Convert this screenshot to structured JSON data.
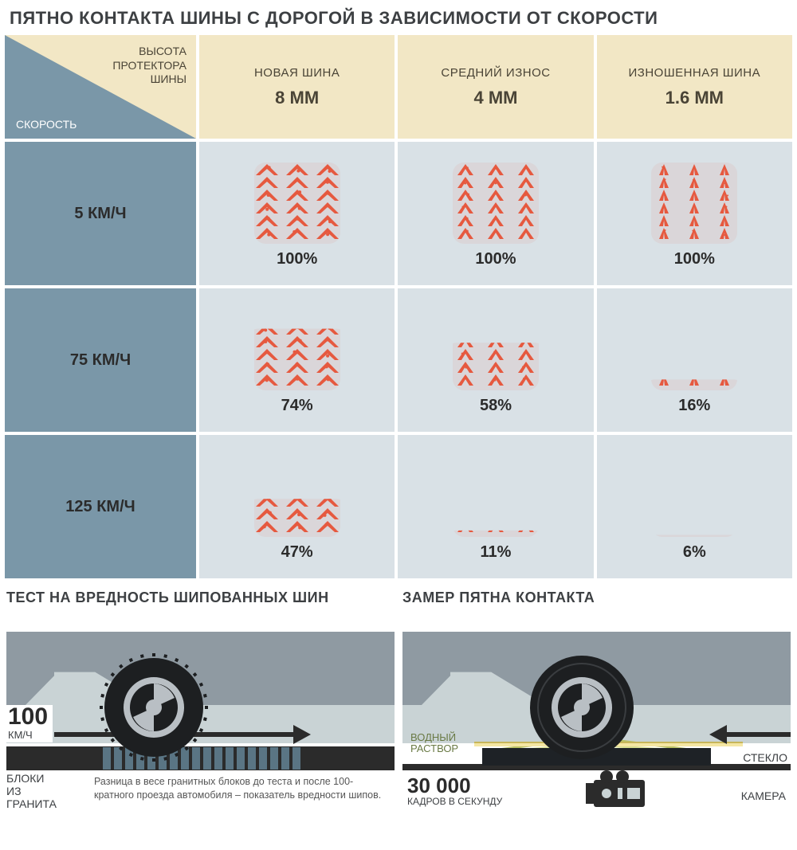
{
  "title": "ПЯТНО КОНТАКТА ШИНЫ С ДОРОГОЙ В ЗАВИСИМОСТИ ОТ СКОРОСТИ",
  "header_corner": {
    "top_label_l1": "ВЫСОТА",
    "top_label_l2": "ПРОТЕКТОРА",
    "top_label_l3": "ШИНЫ",
    "bottom_label": "СКОРОСТЬ"
  },
  "columns": [
    {
      "title": "НОВАЯ ШИНА",
      "depth": "8 ММ"
    },
    {
      "title": "СРЕДНИЙ ИЗНОС",
      "depth": "4 ММ"
    },
    {
      "title": "ИЗНОШЕННАЯ ШИНА",
      "depth": "1.6 ММ"
    }
  ],
  "rows": [
    {
      "speed": "5 КМ/Ч",
      "pct": [
        "100%",
        "100%",
        "100%"
      ],
      "coverage": [
        100,
        100,
        100
      ]
    },
    {
      "speed": "75 КМ/Ч",
      "pct": [
        "74%",
        "58%",
        "16%"
      ],
      "coverage": [
        74,
        58,
        16
      ]
    },
    {
      "speed": "125 КМ/Ч",
      "pct": [
        "47%",
        "11%",
        "6%"
      ],
      "coverage": [
        47,
        11,
        6
      ]
    }
  ],
  "colors": {
    "tread": "#e6593f",
    "header_bg": "#f2e7c5",
    "row_hdr_bg": "#7a97a8",
    "cell_bg": "#d9e1e6",
    "text_dark": "#2b2b2b",
    "sky": "#c9d3d5",
    "car": "#8f9aa2",
    "tire": "#1d1f21",
    "hub": "#b9bfc4",
    "block": "#5a7584"
  },
  "left_panel": {
    "title": "ТЕСТ НА ВРЕДНОСТЬ ШИПОВАННЫХ ШИН",
    "speed_value": "100",
    "speed_unit": "КМ/Ч",
    "granite_l1": "БЛОКИ",
    "granite_l2": "ИЗ",
    "granite_l3": "ГРАНИТА",
    "block_count": 18,
    "caption": "Разница в весе гранитных блоков до теста и после 100-кратного проезда автомобиля – показатель вредности шипов."
  },
  "right_panel": {
    "title": "ЗАМЕР ПЯТНА КОНТАКТА",
    "water_l1": "ВОДНЫЙ",
    "water_l2": "РАСТВОР",
    "glass_label": "СТЕКЛО",
    "fps_value": "30 000",
    "fps_unit": "КАДРОВ В СЕКУНДУ",
    "camera_label": "КАМЕРА"
  }
}
